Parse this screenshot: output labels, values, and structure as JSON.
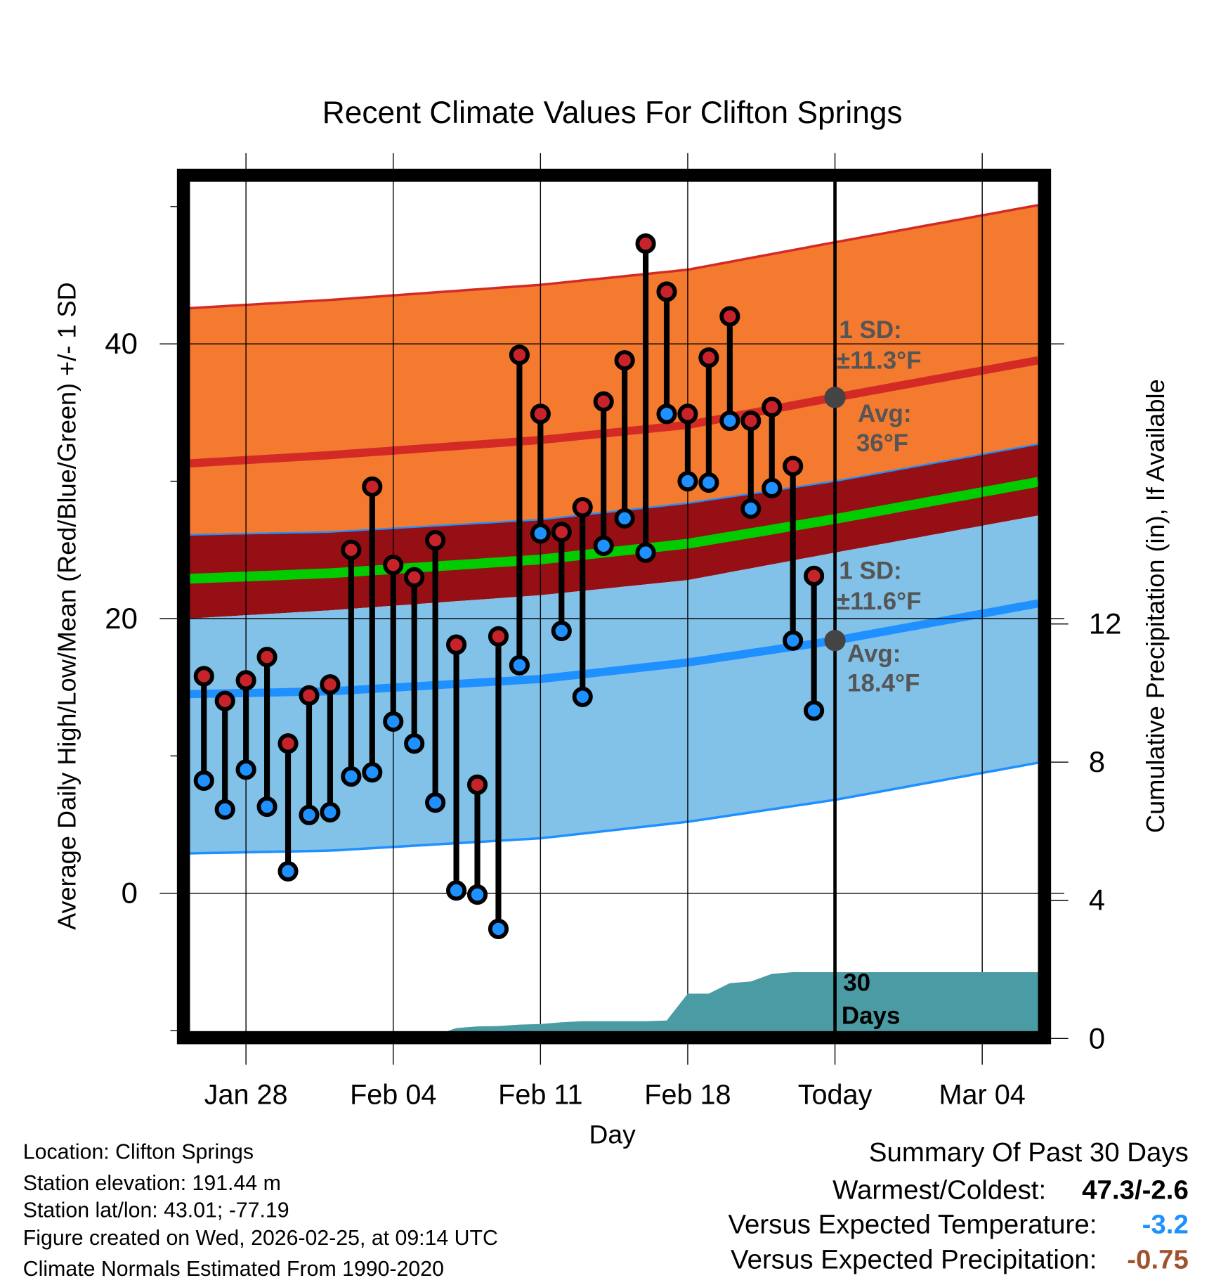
{
  "chart_data": {
    "type": "line",
    "title": "Recent Climate Values For Clifton Springs",
    "xlabel": "Day",
    "ylabel": "Average Daily High/Low/Mean (Red/Blue/Green) +/- 1 SD",
    "y2label": "Cumulative Precipitation (in), If Available",
    "ylim": [
      -10.1,
      51.8
    ],
    "y2lim": [
      0,
      24.8
    ],
    "yticks": [
      "0",
      "20",
      "40"
    ],
    "ytick_values": [
      0,
      20,
      40
    ],
    "y2ticks": [
      "0",
      "4",
      "8",
      "12"
    ],
    "y2tick_values": [
      0,
      4,
      8,
      12
    ],
    "x_day_zero": "Jan 26",
    "xlim_days": [
      -0.66,
      39.65
    ],
    "xticks": [
      {
        "label": "Jan 28",
        "day": 2
      },
      {
        "label": "Feb 04",
        "day": 9
      },
      {
        "label": "Feb 11",
        "day": 16
      },
      {
        "label": "Feb 18",
        "day": 23
      },
      {
        "label": "Today",
        "day": 30
      },
      {
        "label": "Mar 04",
        "day": 37
      }
    ],
    "today_day": 30,
    "dates": [
      "Jan 26",
      "Jan 27",
      "Jan 28",
      "Jan 29",
      "Jan 30",
      "Jan 31",
      "Feb 01",
      "Feb 02",
      "Feb 03",
      "Feb 04",
      "Feb 05",
      "Feb 06",
      "Feb 07",
      "Feb 08",
      "Feb 09",
      "Feb 10",
      "Feb 11",
      "Feb 12",
      "Feb 13",
      "Feb 14",
      "Feb 15",
      "Feb 16",
      "Feb 17",
      "Feb 18",
      "Feb 19",
      "Feb 20",
      "Feb 21",
      "Feb 22",
      "Feb 23",
      "Feb 24"
    ],
    "series": [
      {
        "name": "Daily High",
        "color": "#C8232A",
        "values": [
          15.8,
          14.0,
          15.5,
          17.2,
          10.9,
          14.4,
          15.2,
          25.0,
          29.6,
          23.9,
          23.0,
          25.7,
          18.1,
          7.9,
          18.7,
          39.2,
          34.9,
          26.3,
          28.1,
          35.8,
          38.8,
          47.3,
          43.8,
          34.9,
          39.0,
          42.0,
          34.4,
          35.4,
          31.1,
          23.1
        ]
      },
      {
        "name": "Daily Low",
        "color": "#1E90FF",
        "values": [
          8.2,
          6.1,
          9.0,
          6.3,
          1.6,
          5.7,
          5.9,
          8.5,
          8.8,
          12.5,
          10.9,
          6.6,
          0.2,
          -0.1,
          -2.6,
          16.6,
          26.2,
          19.1,
          14.3,
          25.3,
          27.3,
          24.8,
          34.9,
          30.0,
          29.9,
          34.4,
          28.0,
          29.5,
          18.4,
          13.3
        ]
      }
    ],
    "normals": {
      "days": [
        -0.66,
        6,
        16,
        23,
        30,
        39.65
      ],
      "high_mean": [
        31.3,
        31.9,
        33.0,
        34.1,
        36.1,
        38.8
      ],
      "low_mean": [
        14.5,
        14.7,
        15.6,
        16.8,
        18.4,
        21.1
      ],
      "high_sd": 11.3,
      "low_sd": 11.6
    },
    "precipitation_cumulative": {
      "days": [
        -0.66,
        10,
        10.5,
        11.5,
        12,
        13,
        14,
        15,
        16,
        17,
        18,
        21,
        22,
        23,
        24,
        25,
        26,
        27,
        28,
        29,
        39.65
      ],
      "values": [
        0,
        0,
        0.12,
        0.2,
        0.3,
        0.35,
        0.36,
        0.4,
        0.42,
        0.47,
        0.5,
        0.5,
        0.52,
        1.3,
        1.3,
        1.6,
        1.65,
        1.87,
        1.92,
        1.92,
        1.92
      ]
    },
    "annotations": {
      "high_sd_label": "1 SD:",
      "high_sd_value": "±11.3°F",
      "high_avg_label": "Avg:",
      "high_avg_value": "36°F",
      "low_sd_label": "1 SD:",
      "low_sd_value": "±11.6°F",
      "low_avg_label": "Avg:",
      "low_avg_value": "18.4°F",
      "precip_days_num": "30",
      "precip_days_word": "Days"
    },
    "colors": {
      "high_band": "#F47A30",
      "overlap_band": "#960F14",
      "low_band": "#82C1E8",
      "mean_line": "#00CC00",
      "high_line": "#D42A25",
      "low_line": "#1E90FF",
      "precip": "#4A9BA3"
    }
  },
  "footer": {
    "location": "Location: Clifton Springs",
    "elevation": "Station elevation: 191.44 m",
    "latlon": "Station lat/lon: 43.01; -77.19",
    "created": "Figure created on Wed, 2026-02-25, at 09:14 UTC",
    "normals": "Climate Normals Estimated From 1990-2020"
  },
  "summary": {
    "title": "Summary Of Past 30 Days",
    "warmest_label": "Warmest/Coldest:",
    "warmest_value": "47.3/-2.6",
    "temp_label": "Versus Expected Temperature:",
    "temp_value": "-3.2",
    "temp_color": "#1E90FF",
    "precip_label": "Versus Expected Precipitation:",
    "precip_value": "-0.75",
    "precip_color": "#A0522D"
  }
}
